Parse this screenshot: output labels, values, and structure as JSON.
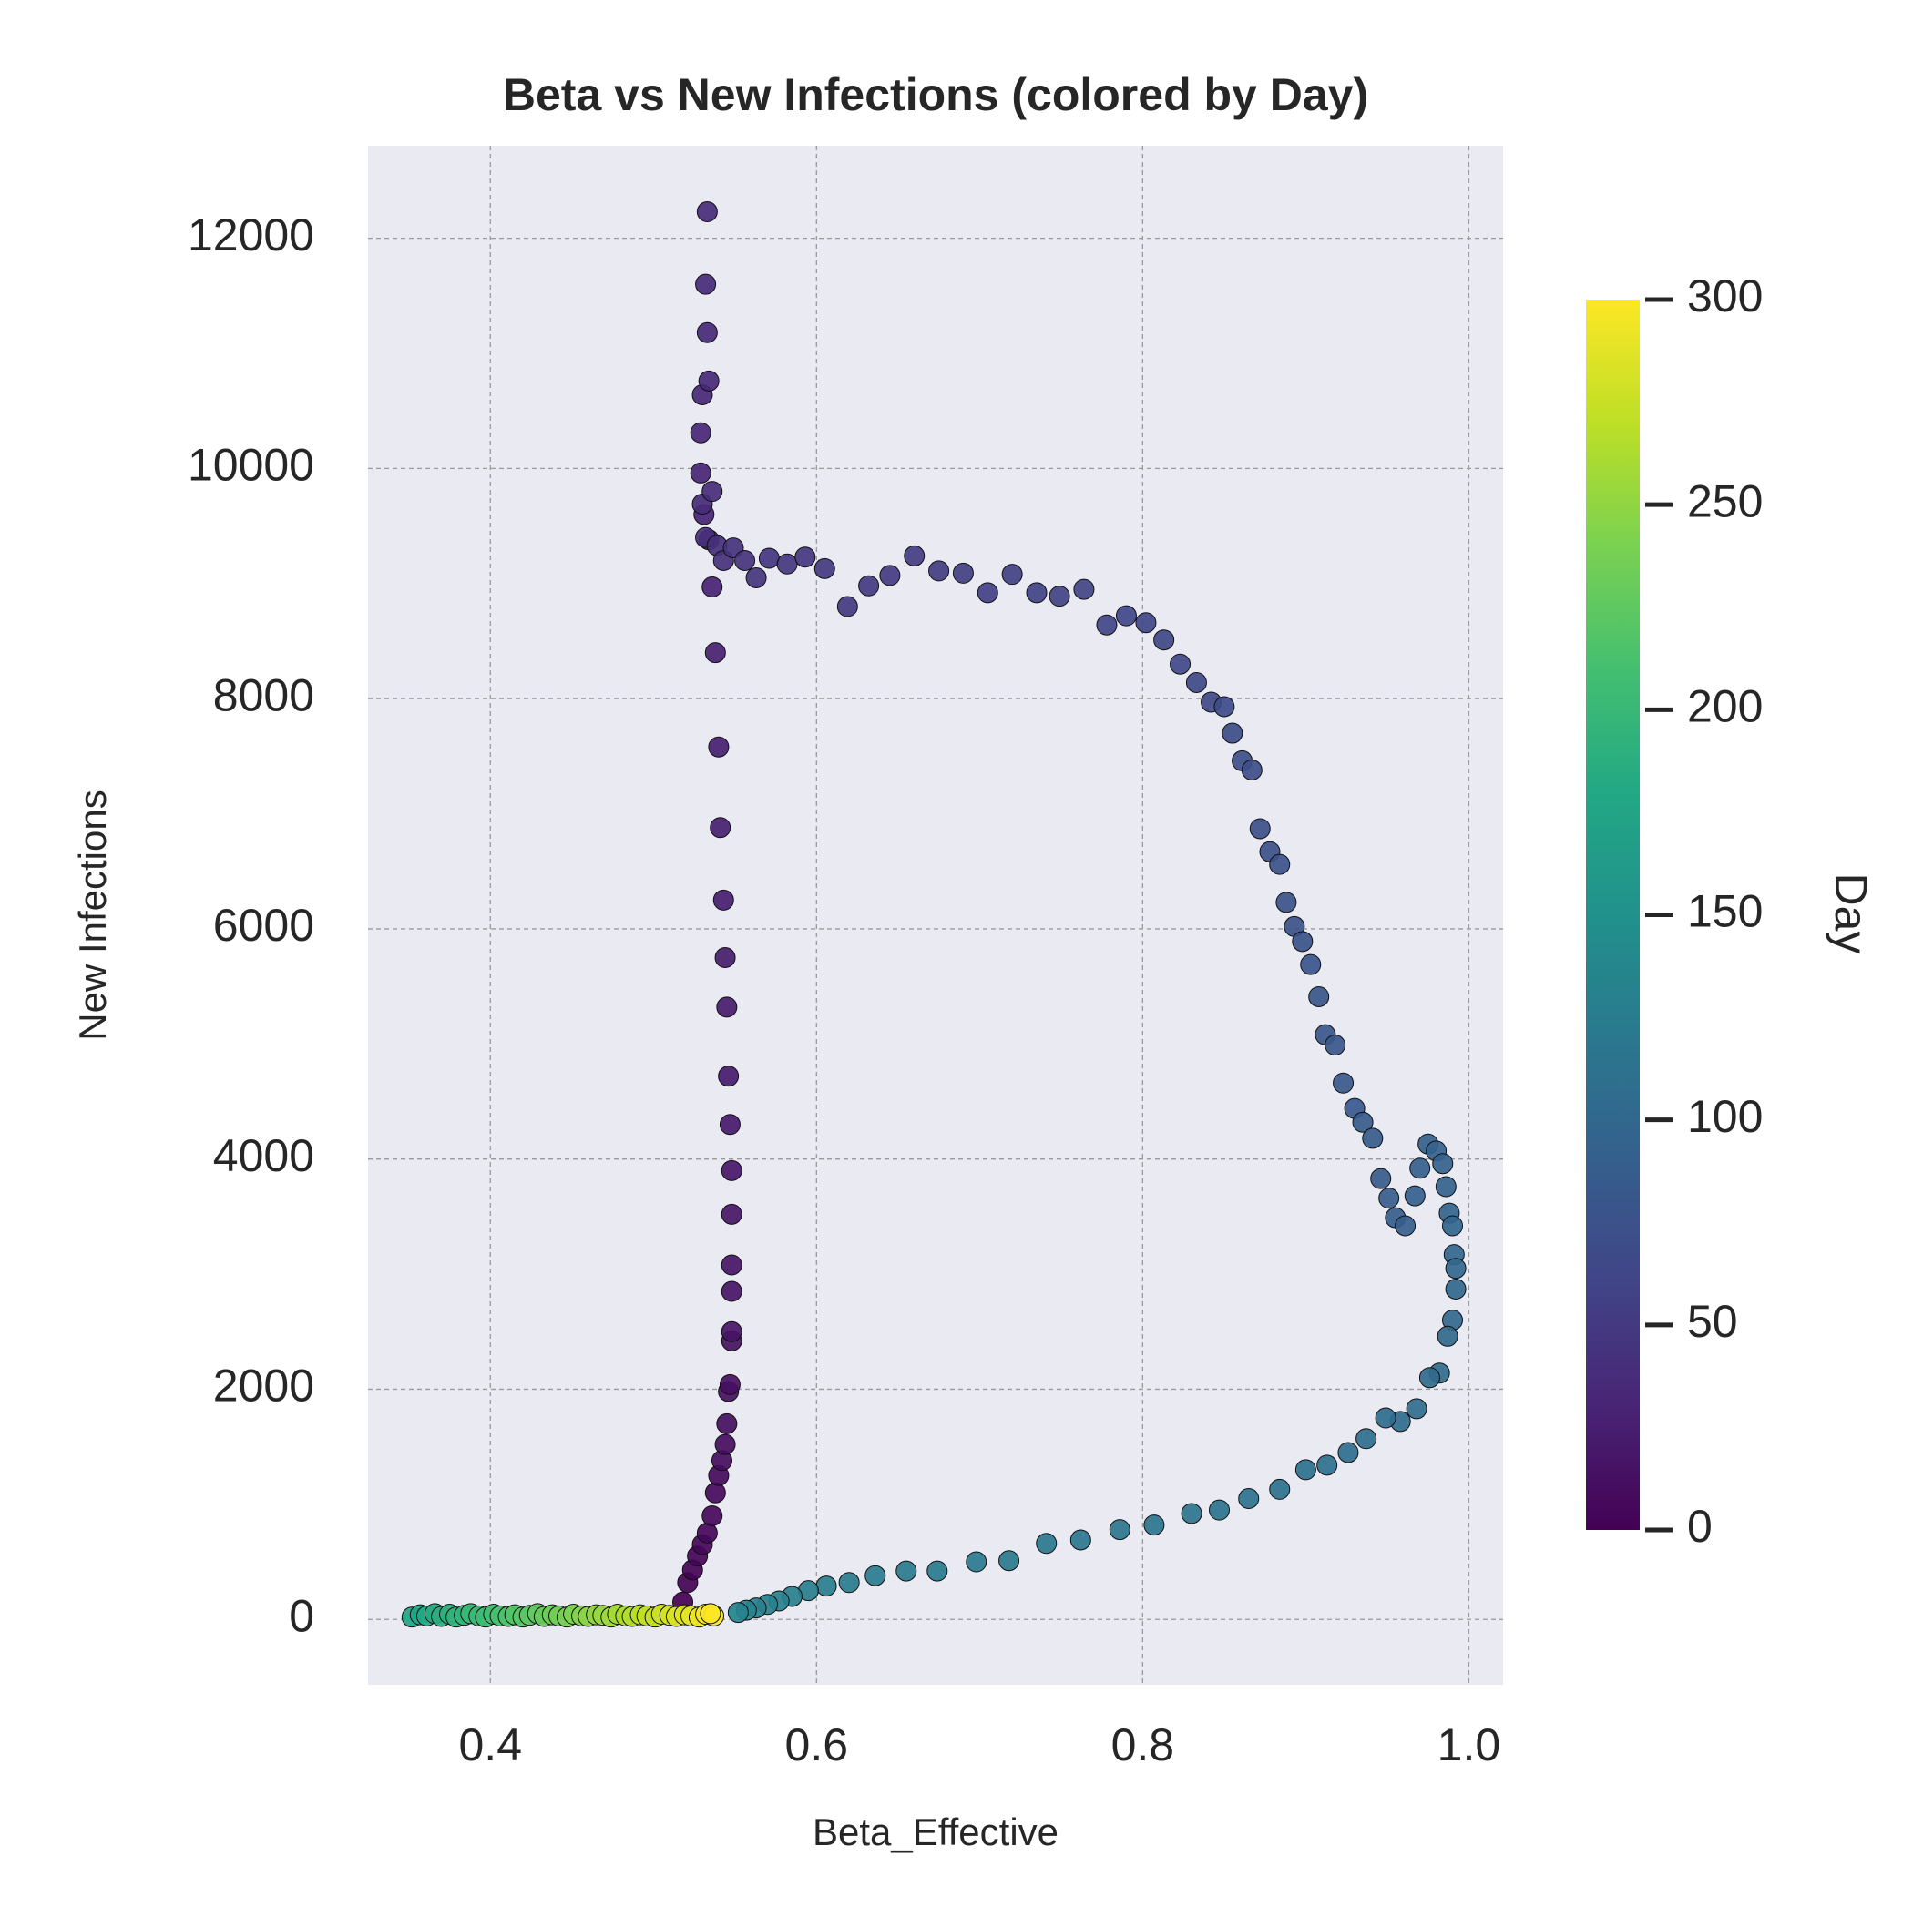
{
  "chart_data": {
    "type": "scatter",
    "title": "Beta vs New Infections (colored by Day)",
    "x_label": "Beta_Effective",
    "y_label": "New Infections",
    "colorbar_label": "Day",
    "colormap": "viridis",
    "grid": true,
    "xlim": [
      0.325,
      1.021
    ],
    "ylim": [
      -568,
      12804
    ],
    "xticks": [
      0.4,
      0.6,
      0.8,
      {
        "value": 1,
        "label": "1.0"
      }
    ],
    "yticks": [
      0,
      2000,
      4000,
      6000,
      8000,
      10000,
      12000
    ],
    "clim": [
      0,
      300
    ],
    "cticks": [
      0,
      50,
      100,
      150,
      200,
      250,
      300
    ],
    "x": [
      0.518,
      0.521,
      0.524,
      0.527,
      0.53,
      0.533,
      0.536,
      0.538,
      0.54,
      0.542,
      0.544,
      0.545,
      0.546,
      0.547,
      0.548,
      0.548,
      0.548,
      0.548,
      0.548,
      0.548,
      0.547,
      0.546,
      0.545,
      0.544,
      0.543,
      0.541,
      0.54,
      0.538,
      0.536,
      0.534,
      0.531,
      0.529,
      0.529,
      0.53,
      0.534,
      0.533,
      0.532,
      0.533,
      0.53,
      0.536,
      0.532,
      0.539,
      0.543,
      0.549,
      0.556,
      0.563,
      0.571,
      0.582,
      0.593,
      0.605,
      0.619,
      0.632,
      0.645,
      0.66,
      0.675,
      0.69,
      0.705,
      0.72,
      0.735,
      0.749,
      0.764,
      0.778,
      0.79,
      0.802,
      0.813,
      0.823,
      0.833,
      0.842,
      0.85,
      0.855,
      0.861,
      0.867,
      0.872,
      0.878,
      0.884,
      0.888,
      0.893,
      0.898,
      0.903,
      0.908,
      0.912,
      0.918,
      0.923,
      0.93,
      0.935,
      0.941,
      0.946,
      0.951,
      0.955,
      0.961,
      0.967,
      0.97,
      0.975,
      0.98,
      0.984,
      0.986,
      0.988,
      0.99,
      0.991,
      0.992,
      0.992,
      0.99,
      0.987,
      0.982,
      0.976,
      0.968,
      0.958,
      0.949,
      0.937,
      0.926,
      0.913,
      0.9,
      0.884,
      0.865,
      0.847,
      0.83,
      0.807,
      0.786,
      0.762,
      0.741,
      0.718,
      0.698,
      0.674,
      0.655,
      0.636,
      0.62,
      0.606,
      0.595,
      0.585,
      0.577,
      0.57,
      0.563,
      0.557,
      0.552,
      0.352,
      0.357,
      0.361,
      0.366,
      0.37,
      0.375,
      0.379,
      0.384,
      0.388,
      0.393,
      0.397,
      0.402,
      0.406,
      0.411,
      0.415,
      0.42,
      0.424,
      0.429,
      0.433,
      0.438,
      0.442,
      0.447,
      0.451,
      0.456,
      0.46,
      0.465,
      0.469,
      0.474,
      0.478,
      0.483,
      0.487,
      0.492,
      0.496,
      0.501,
      0.505,
      0.51,
      0.514,
      0.519,
      0.523,
      0.528,
      0.532,
      0.537,
      0.535
    ],
    "y": [
      150,
      320,
      430,
      550,
      650,
      750,
      900,
      1100,
      1250,
      1380,
      1520,
      1700,
      1980,
      2040,
      2420,
      2500,
      2850,
      3080,
      3520,
      3900,
      4300,
      4720,
      5320,
      5750,
      6250,
      6880,
      7580,
      8400,
      8970,
      9380,
      9600,
      9960,
      10310,
      10640,
      10760,
      11180,
      11600,
      12230,
      9690,
      9800,
      9400,
      9330,
      9200,
      9310,
      9200,
      9050,
      9220,
      9170,
      9230,
      9130,
      8800,
      8980,
      9070,
      9240,
      9110,
      9090,
      8920,
      9080,
      8920,
      8890,
      8950,
      8640,
      8720,
      8660,
      8510,
      8300,
      8140,
      7970,
      7930,
      7700,
      7460,
      7380,
      6870,
      6670,
      6560,
      6230,
      6020,
      5890,
      5690,
      5410,
      5080,
      4990,
      4660,
      4440,
      4320,
      4180,
      3830,
      3660,
      3490,
      3420,
      3680,
      3920,
      4130,
      4070,
      3960,
      3760,
      3530,
      3420,
      3170,
      3050,
      2870,
      2600,
      2460,
      2140,
      2100,
      1830,
      1720,
      1750,
      1570,
      1450,
      1340,
      1300,
      1130,
      1050,
      950,
      920,
      820,
      780,
      690,
      660,
      510,
      500,
      420,
      420,
      380,
      320,
      290,
      250,
      200,
      160,
      130,
      100,
      80,
      60,
      20,
      40,
      30,
      50,
      25,
      45,
      20,
      35,
      50,
      30,
      20,
      45,
      30,
      25,
      40,
      20,
      35,
      50,
      25,
      40,
      30,
      20,
      45,
      30,
      25,
      40,
      35,
      20,
      45,
      30,
      25,
      40,
      30,
      20,
      45,
      35,
      25,
      40,
      30,
      20,
      45,
      30,
      50
    ],
    "c": [
      0,
      1,
      2,
      3,
      4,
      5,
      6,
      7,
      8,
      9,
      10,
      11,
      12,
      13,
      14,
      15,
      16,
      17,
      18,
      19,
      20,
      21,
      22,
      23,
      24,
      25,
      26,
      27,
      28,
      29,
      30,
      31,
      32,
      33,
      34,
      35,
      36,
      37,
      38,
      39,
      40,
      41,
      42,
      43,
      44,
      45,
      46,
      47,
      48,
      49,
      50,
      51,
      52,
      53,
      54,
      55,
      56,
      57,
      58,
      59,
      60,
      61,
      62,
      63,
      64,
      65,
      66,
      67,
      68,
      69,
      70,
      71,
      72,
      73,
      74,
      75,
      76,
      77,
      78,
      79,
      80,
      81,
      82,
      83,
      84,
      85,
      86,
      87,
      88,
      89,
      90,
      91,
      92,
      93,
      94,
      95,
      96,
      97,
      98,
      99,
      100,
      101,
      102,
      103,
      104,
      105,
      106,
      107,
      108,
      109,
      110,
      111,
      112,
      113,
      114,
      115,
      116,
      117,
      118,
      119,
      120,
      121,
      122,
      123,
      124,
      125,
      126,
      127,
      128,
      129,
      130,
      131,
      132,
      133,
      175,
      178,
      181,
      184,
      187,
      190,
      193,
      196,
      199,
      202,
      205,
      208,
      211,
      214,
      217,
      220,
      223,
      226,
      229,
      232,
      235,
      238,
      241,
      244,
      247,
      250,
      253,
      256,
      259,
      262,
      265,
      268,
      271,
      274,
      277,
      280,
      283,
      286,
      289,
      292,
      295,
      298,
      300
    ]
  }
}
